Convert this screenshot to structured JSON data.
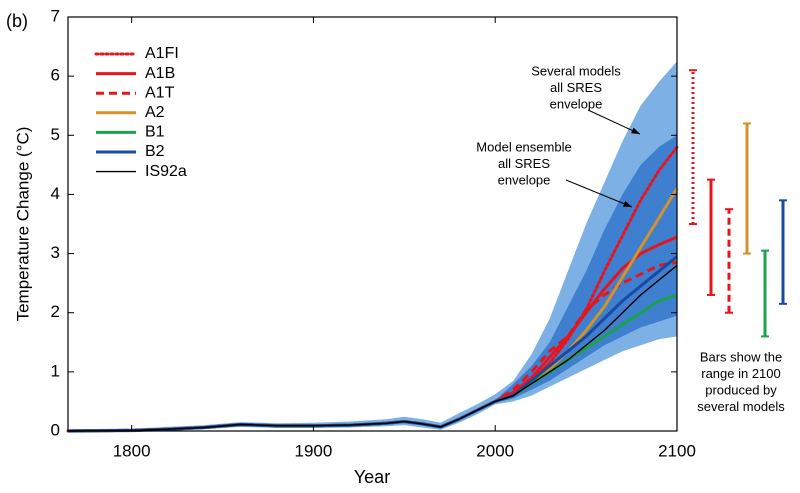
{
  "chart_data": {
    "type": "line",
    "panel_label": "(b)",
    "x_label": "Year",
    "y_label": "Temperature Change (°C)",
    "xlim": [
      1765,
      2100
    ],
    "ylim": [
      0,
      7
    ],
    "xticks": [
      1800,
      1900,
      2000,
      2100
    ],
    "yticks": [
      0,
      1,
      2,
      3,
      4,
      5,
      6,
      7
    ],
    "grid": false,
    "legend": "top-left",
    "x": [
      1765,
      1800,
      1820,
      1840,
      1860,
      1880,
      1900,
      1920,
      1940,
      1950,
      1960,
      1970,
      1980,
      1990,
      2000,
      2010,
      2020,
      2030,
      2040,
      2050,
      2060,
      2070,
      2080,
      2090,
      2100
    ],
    "envelopes": [
      {
        "label": [
          "Several models",
          "all SRES",
          "envelope"
        ],
        "color": "#7db1e6",
        "lower": [
          -0.03,
          -0.02,
          0.0,
          0.03,
          0.07,
          0.05,
          0.05,
          0.06,
          0.08,
          0.1,
          0.06,
          0.02,
          0.14,
          0.28,
          0.45,
          0.5,
          0.6,
          0.75,
          0.9,
          1.05,
          1.2,
          1.35,
          1.45,
          1.55,
          1.6
        ],
        "upper": [
          0.03,
          0.04,
          0.07,
          0.1,
          0.15,
          0.13,
          0.14,
          0.16,
          0.2,
          0.24,
          0.2,
          0.14,
          0.3,
          0.45,
          0.62,
          0.85,
          1.3,
          1.9,
          2.7,
          3.5,
          4.2,
          4.9,
          5.5,
          5.9,
          6.25
        ]
      },
      {
        "label": [
          "Model ensemble",
          "all SRES",
          "envelope"
        ],
        "color": "#3f7fd0",
        "lower": [
          null,
          null,
          null,
          null,
          null,
          null,
          null,
          null,
          null,
          null,
          null,
          null,
          null,
          null,
          0.48,
          0.55,
          0.7,
          0.85,
          1.05,
          1.25,
          1.45,
          1.6,
          1.75,
          1.85,
          1.95
        ],
        "upper": [
          null,
          null,
          null,
          null,
          null,
          null,
          null,
          null,
          null,
          null,
          null,
          null,
          null,
          null,
          0.52,
          0.8,
          1.1,
          1.5,
          2.1,
          2.7,
          3.4,
          4.0,
          4.5,
          4.8,
          5.0
        ]
      }
    ],
    "series": [
      {
        "name": "A1FI",
        "color": "#e8141c",
        "dash": "dotted",
        "range_low": 3.5,
        "range_high": 6.1,
        "values": [
          0,
          0.01,
          0.03,
          0.06,
          0.11,
          0.09,
          0.09,
          0.1,
          0.13,
          0.16,
          0.12,
          0.07,
          0.2,
          0.35,
          0.5,
          0.65,
          0.85,
          1.15,
          1.55,
          2.05,
          2.7,
          3.3,
          3.9,
          4.4,
          4.8
        ]
      },
      {
        "name": "A1B",
        "color": "#e8141c",
        "dash": "solid",
        "range_low": 2.3,
        "range_high": 4.25,
        "values": [
          0,
          0.01,
          0.03,
          0.06,
          0.11,
          0.09,
          0.09,
          0.1,
          0.13,
          0.16,
          0.12,
          0.07,
          0.2,
          0.35,
          0.5,
          0.65,
          0.9,
          1.25,
          1.6,
          2.0,
          2.4,
          2.75,
          3.0,
          3.15,
          3.28
        ]
      },
      {
        "name": "A1T",
        "color": "#e8141c",
        "dash": "dashed",
        "range_low": 2.0,
        "range_high": 3.75,
        "values": [
          0,
          0.01,
          0.03,
          0.06,
          0.11,
          0.09,
          0.09,
          0.1,
          0.13,
          0.16,
          0.12,
          0.07,
          0.2,
          0.35,
          0.5,
          0.7,
          1.0,
          1.35,
          1.6,
          2.05,
          2.3,
          2.5,
          2.65,
          2.8,
          2.85
        ]
      },
      {
        "name": "A2",
        "color": "#d4922a",
        "dash": "solid",
        "range_low": 3.0,
        "range_high": 5.2,
        "values": [
          0,
          0.01,
          0.03,
          0.06,
          0.11,
          0.09,
          0.09,
          0.1,
          0.13,
          0.16,
          0.12,
          0.07,
          0.2,
          0.35,
          0.5,
          0.6,
          0.8,
          1.05,
          1.35,
          1.7,
          2.1,
          2.6,
          3.1,
          3.6,
          4.1
        ]
      },
      {
        "name": "B1",
        "color": "#1aa34a",
        "dash": "solid",
        "range_low": 1.6,
        "range_high": 3.05,
        "values": [
          0,
          0.01,
          0.03,
          0.06,
          0.11,
          0.09,
          0.09,
          0.1,
          0.13,
          0.16,
          0.12,
          0.07,
          0.2,
          0.35,
          0.5,
          0.6,
          0.8,
          1.0,
          1.2,
          1.4,
          1.6,
          1.8,
          2.0,
          2.2,
          2.3
        ]
      },
      {
        "name": "B2",
        "color": "#1a4aa0",
        "dash": "solid",
        "range_low": 2.15,
        "range_high": 3.9,
        "values": [
          0,
          0.01,
          0.03,
          0.06,
          0.11,
          0.09,
          0.09,
          0.1,
          0.13,
          0.16,
          0.12,
          0.07,
          0.2,
          0.35,
          0.5,
          0.6,
          0.85,
          1.1,
          1.35,
          1.6,
          1.9,
          2.2,
          2.45,
          2.7,
          2.95
        ]
      },
      {
        "name": "IS92a",
        "color": "#000000",
        "dash": "thin",
        "values": [
          0,
          0.01,
          0.03,
          0.06,
          0.11,
          0.09,
          0.09,
          0.1,
          0.13,
          0.16,
          0.12,
          0.07,
          0.2,
          0.35,
          0.5,
          0.6,
          0.8,
          1.0,
          1.2,
          1.45,
          1.7,
          2.0,
          2.3,
          2.55,
          2.8
        ]
      }
    ],
    "bars_note": [
      "Bars show the",
      "range in 2100",
      "produced by",
      "several models"
    ]
  }
}
